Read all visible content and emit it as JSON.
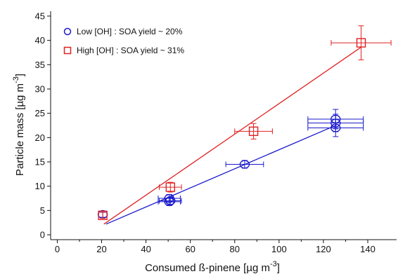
{
  "chart_data": {
    "type": "scatter",
    "xlabel_main": "Consumed ß-pinene [µg m",
    "xlabel_sup": "-3",
    "xlabel_end": "]",
    "ylabel_main": "Particle mass [µg m",
    "ylabel_sup": "-3",
    "ylabel_end": "]",
    "xlim": [
      -3,
      153
    ],
    "ylim": [
      -1,
      46
    ],
    "x_ticks": [
      0,
      20,
      40,
      60,
      80,
      100,
      120,
      140
    ],
    "y_ticks": [
      0,
      5,
      10,
      15,
      20,
      25,
      30,
      35,
      40,
      45
    ],
    "x_tick_labels": [
      "0",
      "20",
      "40",
      "60",
      "80",
      "100",
      "120",
      "140"
    ],
    "y_tick_labels": [
      "0",
      "5",
      "10",
      "15",
      "20",
      "25",
      "30",
      "35",
      "40",
      "45"
    ],
    "legend_position": "top-left",
    "grid": false,
    "series": [
      {
        "name": "Low [OH] : SOA yield ~ 20%",
        "color": "#1a1acc",
        "marker": "circle",
        "points": [
          {
            "x": 20.5,
            "y": 4.2,
            "xerr": 0,
            "yerr": 0.6
          },
          {
            "x": 50.5,
            "y": 7.5,
            "xerr": 5,
            "yerr": 0.8
          },
          {
            "x": 50.5,
            "y": 6.8,
            "xerr": 5,
            "yerr": 0.8
          },
          {
            "x": 51.0,
            "y": 7.0,
            "xerr": 5,
            "yerr": 0.8
          },
          {
            "x": 84.5,
            "y": 14.5,
            "xerr": 8.5,
            "yerr": 0.8
          },
          {
            "x": 125.5,
            "y": 23.8,
            "xerr": 12.5,
            "yerr": 2.0
          },
          {
            "x": 125.5,
            "y": 22.0,
            "xerr": 12.5,
            "yerr": 1.8
          },
          {
            "x": 125.5,
            "y": 23.0,
            "xerr": 12.5,
            "yerr": 1.8
          }
        ],
        "fit": {
          "x": [
            22,
            126
          ],
          "y": [
            2.2,
            22.6
          ]
        }
      },
      {
        "name": "High [OH] : SOA yield ~ 31%",
        "color": "#e02020",
        "marker": "square",
        "points": [
          {
            "x": 20.5,
            "y": 4.0,
            "xerr": 0,
            "yerr": 0.6
          },
          {
            "x": 51.0,
            "y": 9.8,
            "xerr": 5,
            "yerr": 1.0
          },
          {
            "x": 88.5,
            "y": 21.3,
            "xerr": 8.5,
            "yerr": 1.6
          },
          {
            "x": 137.0,
            "y": 39.5,
            "xerr": 13.5,
            "yerr": 3.5
          }
        ],
        "fit": {
          "x": [
            21,
            137
          ],
          "y": [
            2.2,
            38.6
          ]
        }
      }
    ]
  }
}
